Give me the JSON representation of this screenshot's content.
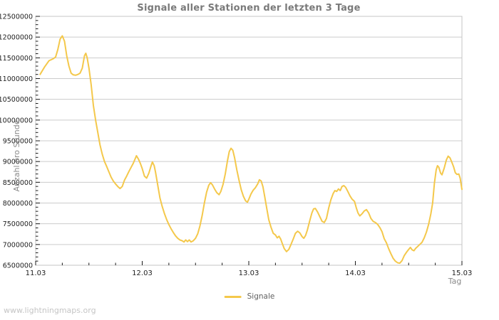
{
  "watermark": {
    "text": "www.lightningmaps.org"
  },
  "legend": {
    "label": "Signale",
    "swatch_color": "#F4C84B"
  },
  "colors": {
    "line": "#F4C84B",
    "grid": "#cccccc",
    "box": "#c4c4c4",
    "tick": "#1a1a1a",
    "tick_label": "#222222",
    "title": "#7a7a7a"
  },
  "chart_data": {
    "type": "line",
    "title": "Signale aller Stationen der letzten 3 Tage",
    "xlabel": "Tag",
    "ylabel": "Anzahl pro Stunde",
    "ylim": [
      6500000,
      12500000
    ],
    "y_major_step": 500000,
    "y_minor_step": 100000,
    "x_range_hours": [
      0,
      96
    ],
    "x_minor_step_hours": 6,
    "x_ticks": [
      {
        "hour": 0,
        "label": "11.03"
      },
      {
        "hour": 24,
        "label": "12.03"
      },
      {
        "hour": 48,
        "label": "13.03"
      },
      {
        "hour": 72,
        "label": "14.03"
      },
      {
        "hour": 96,
        "label": "15.03"
      }
    ],
    "grid": "horizontal-only",
    "legend_position": "bottom-center",
    "series": [
      {
        "name": "Signale",
        "color": "#F4C84B",
        "points": [
          [
            1,
            11100000
          ],
          [
            2,
            11280000
          ],
          [
            3,
            11430000
          ],
          [
            4,
            11480000
          ],
          [
            4.5,
            11520000
          ],
          [
            5,
            11700000
          ],
          [
            5.5,
            11950000
          ],
          [
            6,
            12030000
          ],
          [
            6.5,
            11900000
          ],
          [
            7,
            11550000
          ],
          [
            7.5,
            11300000
          ],
          [
            8,
            11130000
          ],
          [
            8.5,
            11090000
          ],
          [
            9,
            11080000
          ],
          [
            9.5,
            11100000
          ],
          [
            10,
            11130000
          ],
          [
            10.5,
            11250000
          ],
          [
            11,
            11550000
          ],
          [
            11.3,
            11610000
          ],
          [
            11.6,
            11500000
          ],
          [
            12,
            11250000
          ],
          [
            12.5,
            10850000
          ],
          [
            13,
            10350000
          ],
          [
            13.5,
            10000000
          ],
          [
            14,
            9700000
          ],
          [
            14.5,
            9400000
          ],
          [
            15,
            9180000
          ],
          [
            15.5,
            9000000
          ],
          [
            16,
            8880000
          ],
          [
            16.5,
            8750000
          ],
          [
            17,
            8620000
          ],
          [
            17.5,
            8530000
          ],
          [
            18,
            8460000
          ],
          [
            18.5,
            8400000
          ],
          [
            19,
            8350000
          ],
          [
            19.5,
            8400000
          ],
          [
            20,
            8550000
          ],
          [
            20.5,
            8650000
          ],
          [
            21,
            8760000
          ],
          [
            21.5,
            8860000
          ],
          [
            22,
            8960000
          ],
          [
            22.7,
            9140000
          ],
          [
            23.2,
            9050000
          ],
          [
            23.6,
            8950000
          ],
          [
            24,
            8830000
          ],
          [
            24.5,
            8650000
          ],
          [
            25,
            8600000
          ],
          [
            25.5,
            8720000
          ],
          [
            26,
            8900000
          ],
          [
            26.3,
            8990000
          ],
          [
            26.7,
            8900000
          ],
          [
            27,
            8740000
          ],
          [
            27.5,
            8430000
          ],
          [
            28,
            8120000
          ],
          [
            28.5,
            7920000
          ],
          [
            29,
            7750000
          ],
          [
            29.5,
            7600000
          ],
          [
            30,
            7480000
          ],
          [
            30.5,
            7380000
          ],
          [
            31,
            7290000
          ],
          [
            31.5,
            7210000
          ],
          [
            32,
            7150000
          ],
          [
            32.5,
            7110000
          ],
          [
            33,
            7090000
          ],
          [
            33.4,
            7060000
          ],
          [
            33.8,
            7110000
          ],
          [
            34.2,
            7070000
          ],
          [
            34.6,
            7110000
          ],
          [
            35,
            7060000
          ],
          [
            35.5,
            7090000
          ],
          [
            36,
            7150000
          ],
          [
            36.5,
            7260000
          ],
          [
            37,
            7450000
          ],
          [
            37.5,
            7700000
          ],
          [
            38,
            8000000
          ],
          [
            38.5,
            8260000
          ],
          [
            39,
            8430000
          ],
          [
            39.4,
            8490000
          ],
          [
            39.8,
            8440000
          ],
          [
            40.3,
            8340000
          ],
          [
            40.8,
            8250000
          ],
          [
            41.3,
            8200000
          ],
          [
            41.7,
            8280000
          ],
          [
            42.2,
            8450000
          ],
          [
            42.7,
            8700000
          ],
          [
            43.2,
            9020000
          ],
          [
            43.6,
            9240000
          ],
          [
            44,
            9320000
          ],
          [
            44.4,
            9270000
          ],
          [
            44.8,
            9090000
          ],
          [
            45.3,
            8800000
          ],
          [
            45.8,
            8550000
          ],
          [
            46.3,
            8320000
          ],
          [
            46.8,
            8160000
          ],
          [
            47.3,
            8050000
          ],
          [
            47.7,
            8020000
          ],
          [
            48,
            8090000
          ],
          [
            48.5,
            8220000
          ],
          [
            49,
            8310000
          ],
          [
            49.5,
            8370000
          ],
          [
            50,
            8460000
          ],
          [
            50.4,
            8560000
          ],
          [
            50.8,
            8530000
          ],
          [
            51.2,
            8390000
          ],
          [
            51.6,
            8150000
          ],
          [
            52,
            7900000
          ],
          [
            52.5,
            7600000
          ],
          [
            53,
            7420000
          ],
          [
            53.5,
            7270000
          ],
          [
            54,
            7230000
          ],
          [
            54.4,
            7160000
          ],
          [
            54.8,
            7200000
          ],
          [
            55.2,
            7130000
          ],
          [
            55.6,
            7010000
          ],
          [
            56,
            6900000
          ],
          [
            56.5,
            6830000
          ],
          [
            57,
            6880000
          ],
          [
            57.5,
            7000000
          ],
          [
            58,
            7130000
          ],
          [
            58.5,
            7270000
          ],
          [
            59,
            7320000
          ],
          [
            59.5,
            7280000
          ],
          [
            60,
            7190000
          ],
          [
            60.4,
            7150000
          ],
          [
            60.8,
            7220000
          ],
          [
            61.2,
            7350000
          ],
          [
            61.7,
            7560000
          ],
          [
            62.2,
            7760000
          ],
          [
            62.6,
            7860000
          ],
          [
            63,
            7870000
          ],
          [
            63.5,
            7780000
          ],
          [
            64,
            7670000
          ],
          [
            64.5,
            7560000
          ],
          [
            65,
            7530000
          ],
          [
            65.5,
            7630000
          ],
          [
            66,
            7880000
          ],
          [
            66.5,
            8080000
          ],
          [
            67,
            8230000
          ],
          [
            67.4,
            8300000
          ],
          [
            67.8,
            8280000
          ],
          [
            68.2,
            8340000
          ],
          [
            68.6,
            8300000
          ],
          [
            69,
            8400000
          ],
          [
            69.4,
            8420000
          ],
          [
            69.8,
            8380000
          ],
          [
            70.3,
            8280000
          ],
          [
            70.8,
            8170000
          ],
          [
            71.3,
            8090000
          ],
          [
            71.8,
            8040000
          ],
          [
            72.2,
            7890000
          ],
          [
            72.6,
            7760000
          ],
          [
            73,
            7690000
          ],
          [
            73.5,
            7740000
          ],
          [
            74,
            7810000
          ],
          [
            74.5,
            7840000
          ],
          [
            75,
            7760000
          ],
          [
            75.5,
            7630000
          ],
          [
            76,
            7560000
          ],
          [
            76.5,
            7530000
          ],
          [
            77,
            7490000
          ],
          [
            77.5,
            7410000
          ],
          [
            78,
            7310000
          ],
          [
            78.5,
            7140000
          ],
          [
            79,
            7040000
          ],
          [
            79.5,
            6900000
          ],
          [
            80,
            6780000
          ],
          [
            80.5,
            6670000
          ],
          [
            81,
            6600000
          ],
          [
            81.5,
            6560000
          ],
          [
            82,
            6550000
          ],
          [
            82.5,
            6610000
          ],
          [
            83,
            6730000
          ],
          [
            83.5,
            6810000
          ],
          [
            84,
            6880000
          ],
          [
            84.4,
            6930000
          ],
          [
            84.8,
            6870000
          ],
          [
            85.2,
            6850000
          ],
          [
            85.6,
            6910000
          ],
          [
            86,
            6950000
          ],
          [
            86.5,
            7000000
          ],
          [
            87,
            7050000
          ],
          [
            87.5,
            7160000
          ],
          [
            88,
            7300000
          ],
          [
            88.5,
            7490000
          ],
          [
            89,
            7740000
          ],
          [
            89.4,
            8000000
          ],
          [
            89.8,
            8480000
          ],
          [
            90.2,
            8800000
          ],
          [
            90.5,
            8900000
          ],
          [
            90.8,
            8860000
          ],
          [
            91.2,
            8720000
          ],
          [
            91.5,
            8680000
          ],
          [
            92,
            8840000
          ],
          [
            92.5,
            9040000
          ],
          [
            92.9,
            9130000
          ],
          [
            93.3,
            9090000
          ],
          [
            93.7,
            8990000
          ],
          [
            94.1,
            8880000
          ],
          [
            94.5,
            8730000
          ],
          [
            94.9,
            8690000
          ],
          [
            95.3,
            8700000
          ],
          [
            95.6,
            8600000
          ],
          [
            96,
            8330000
          ]
        ]
      }
    ]
  }
}
